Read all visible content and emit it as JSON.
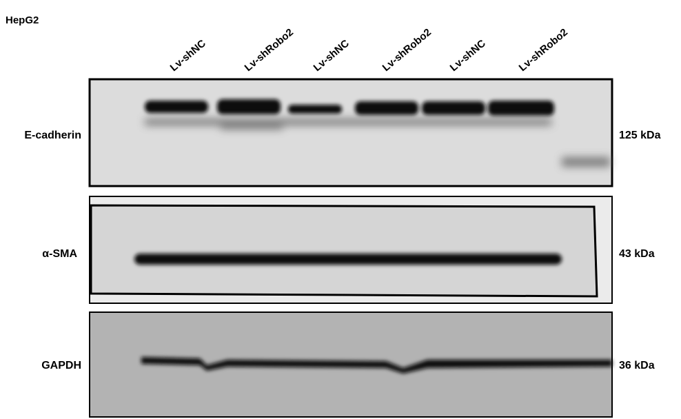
{
  "header": {
    "title": "HepG2"
  },
  "lanes": [
    "Lv-shNC",
    "Lv-shRobo2",
    "Lv-shNC",
    "Lv-shRobo2",
    "Lv-shNC",
    "Lv-shRobo2"
  ],
  "blots": [
    {
      "label": "E-cadherin",
      "size": "125 kDa"
    },
    {
      "label": "α-SMA",
      "size": "43 kDa"
    },
    {
      "label": "GAPDH",
      "size": "36 kDa"
    }
  ]
}
